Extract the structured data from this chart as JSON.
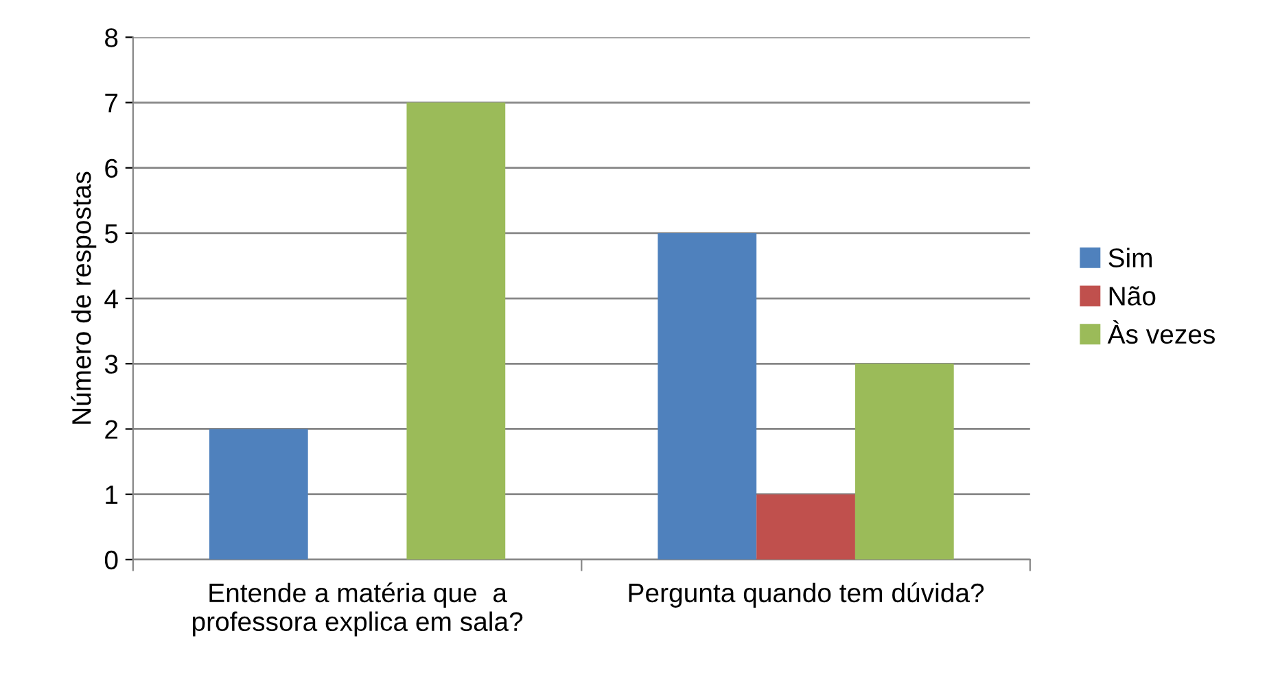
{
  "chart_data": {
    "type": "bar",
    "ylabel": "Número de respostas",
    "categories": [
      "Entende a matéria que  a professora explica em sala?",
      "Pergunta quando tem dúvida?"
    ],
    "series": [
      {
        "name": "Sim",
        "color": "#4f81bd",
        "values": [
          2,
          5
        ]
      },
      {
        "name": "Não",
        "color": "#c0504d",
        "values": [
          0,
          1
        ]
      },
      {
        "name": "Às vezes",
        "color": "#9bbb59",
        "values": [
          7,
          3
        ]
      }
    ],
    "ylim": [
      0,
      8
    ],
    "yticks": [
      0,
      1,
      2,
      3,
      4,
      5,
      6,
      7,
      8
    ],
    "grid": "y",
    "legend": "right"
  }
}
